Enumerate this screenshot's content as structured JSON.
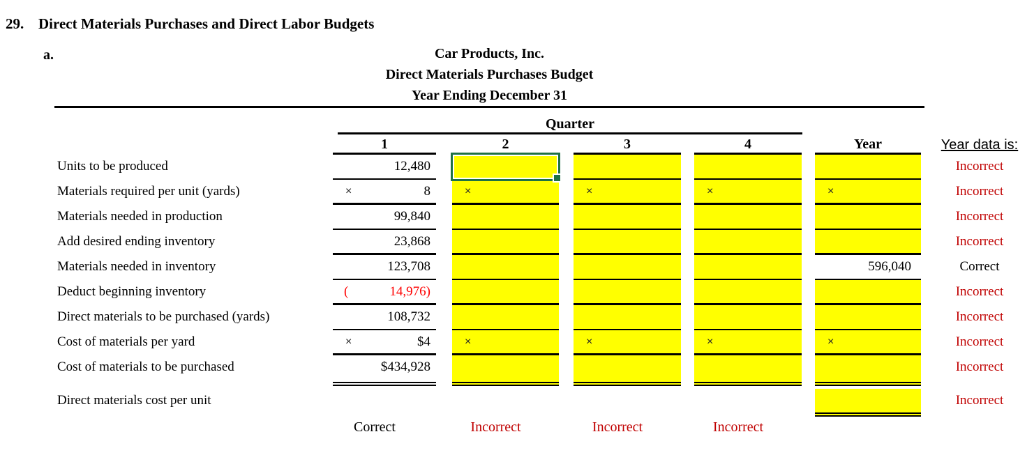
{
  "page": {
    "problem_number": "29.",
    "problem_title": "Direct Materials Purchases and Direct Labor Budgets",
    "part_label": "a."
  },
  "table": {
    "title_lines": [
      "Car Products, Inc.",
      "Direct Materials Purchases Budget",
      "Year Ending December 31"
    ],
    "quarter_header": "Quarter",
    "column_headers": [
      "1",
      "2",
      "3",
      "4"
    ],
    "year_header": "Year",
    "status_header": "Year data is:",
    "multiply_symbol": "×",
    "rows": [
      {
        "label": "Units to be produced",
        "q1": "12,480",
        "status": "Incorrect"
      },
      {
        "label": "Materials required per unit (yards)",
        "q1_prefix": "×",
        "q1": "8",
        "status": "Incorrect"
      },
      {
        "label": "Materials needed in production",
        "q1": "99,840",
        "status": "Incorrect"
      },
      {
        "label": "Add desired ending inventory",
        "q1": "23,868",
        "status": "Incorrect"
      },
      {
        "label": "Materials needed in inventory",
        "q1": "123,708",
        "year": "596,040",
        "status": "Correct"
      },
      {
        "label": "Deduct beginning inventory",
        "q1_prefix": "(",
        "q1": "14,976)",
        "status": "Incorrect"
      },
      {
        "label": "Direct materials to be purchased (yards)",
        "q1": "108,732",
        "status": "Incorrect"
      },
      {
        "label": "Cost of materials per yard",
        "q1_prefix": "×",
        "q1": "$4",
        "status": "Incorrect"
      },
      {
        "label": "Cost of materials to be purchased",
        "q1": "$434,928",
        "status": "Incorrect"
      },
      {
        "label": "Direct materials cost per unit",
        "status": "Incorrect"
      }
    ],
    "quarter_status": [
      "Correct",
      "Incorrect",
      "Incorrect",
      "Incorrect"
    ]
  },
  "colors": {
    "highlight_yellow": "#ffff00",
    "selection_green": "#1f7245",
    "incorrect_red": "#c00000",
    "negative_red": "#ff0000"
  }
}
